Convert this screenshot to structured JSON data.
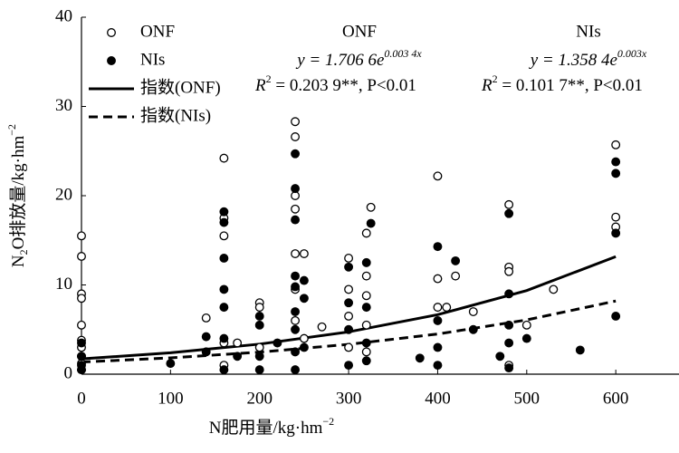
{
  "chart_data": {
    "type": "scatter",
    "x_label": [
      "N肥用量/kg·hm",
      "−2"
    ],
    "y_label": [
      "N",
      "2",
      "O排放量/kg·hm",
      "−2"
    ],
    "xlim": [
      0,
      671
    ],
    "ylim": [
      0,
      40
    ],
    "xticks": [
      0,
      100,
      200,
      300,
      400,
      500,
      600
    ],
    "yticks": [
      0,
      10,
      20,
      30,
      40
    ],
    "series": [
      {
        "name": "ONF",
        "color": "#000000",
        "marker": "open",
        "x": [
          0,
          0,
          0,
          0,
          0,
          0,
          0,
          0,
          0,
          0,
          140,
          160,
          160,
          160,
          160,
          160,
          175,
          200,
          200,
          200,
          240,
          240,
          240,
          240,
          240,
          240,
          240,
          250,
          250,
          270,
          300,
          300,
          300,
          300,
          320,
          325,
          320,
          320,
          320,
          320,
          400,
          400,
          400,
          410,
          420,
          440,
          480,
          480,
          480,
          480,
          500,
          530,
          600,
          600,
          600
        ],
        "values": [
          15.5,
          13.2,
          9,
          8.5,
          5.5,
          3.8,
          3,
          2,
          1.2,
          0.5,
          6.3,
          24.2,
          17.5,
          15.5,
          3.5,
          1,
          3.5,
          8,
          7.5,
          3,
          28.3,
          26.6,
          20,
          18.5,
          13.5,
          9.5,
          6,
          13.5,
          4,
          5.3,
          13,
          9.5,
          6.5,
          3,
          15.8,
          18.7,
          11,
          8.8,
          5.5,
          2.5,
          22.2,
          10.7,
          7.5,
          7.5,
          11,
          7,
          19,
          12,
          11.5,
          1,
          5.5,
          9.5,
          25.7,
          17.6,
          16.5
        ]
      },
      {
        "name": "NIs",
        "color": "#000000",
        "marker": "filled",
        "x": [
          0,
          0,
          0,
          0,
          100,
          140,
          140,
          160,
          160,
          160,
          160,
          160,
          160,
          160,
          175,
          200,
          200,
          200,
          200,
          220,
          240,
          240,
          240,
          240,
          240,
          240,
          240,
          240,
          240,
          250,
          250,
          250,
          300,
          300,
          300,
          300,
          325,
          320,
          320,
          320,
          320,
          380,
          400,
          400,
          400,
          400,
          420,
          440,
          470,
          480,
          480,
          480,
          480,
          480,
          500,
          560,
          600,
          600,
          600,
          600
        ],
        "values": [
          3.5,
          2,
          1,
          0.5,
          1.2,
          4.2,
          2.5,
          18.2,
          17,
          13,
          9.5,
          7.5,
          4,
          0.5,
          2,
          6.5,
          5.5,
          2,
          0.5,
          3.5,
          24.7,
          20.8,
          17.3,
          11,
          9.8,
          7,
          5,
          2.5,
          0.5,
          10.5,
          8.5,
          3,
          12,
          8,
          5,
          1,
          16.9,
          12.5,
          7.5,
          3.5,
          1.5,
          1.8,
          14.3,
          6,
          3,
          1,
          12.7,
          5,
          2,
          18,
          9,
          5.5,
          3.5,
          0.7,
          4,
          2.7,
          23.8,
          22.5,
          15.8,
          6.5
        ]
      },
      {
        "name": "指数(ONF)",
        "color": "#000000",
        "kind": "line",
        "line_style": "solid",
        "x": [
          0,
          100,
          200,
          300,
          400,
          500,
          600
        ],
        "values": [
          1.71,
          2.4,
          3.37,
          4.74,
          6.67,
          9.37,
          13.17
        ]
      },
      {
        "name": "指数(NIs)",
        "color": "#000000",
        "kind": "line",
        "line_style": "dashed",
        "x": [
          0,
          100,
          200,
          300,
          400,
          500,
          600
        ],
        "values": [
          1.36,
          1.83,
          2.47,
          3.34,
          4.5,
          6.08,
          8.2
        ]
      }
    ],
    "annotations": [
      {
        "label": "ONF",
        "equation": [
          "y = 1.706 6e",
          "0.003 4x"
        ],
        "r2": [
          "R",
          "2",
          " = 0.203 9**, P<0.01"
        ]
      },
      {
        "label": "NIs",
        "equation": [
          "y = 1.358 4e",
          "0.003x"
        ],
        "r2": [
          "R",
          "2",
          " = 0.101 7**, P<0.01"
        ]
      }
    ]
  }
}
